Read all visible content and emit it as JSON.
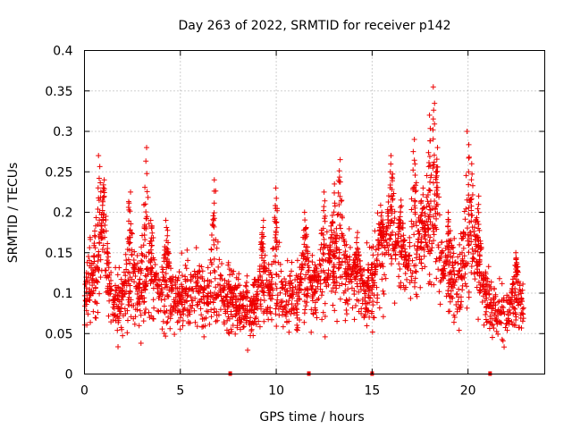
{
  "chart_data": {
    "type": "scatter",
    "title": "Day 263 of 2022, SRMTID for receiver p142",
    "xlabel": "GPS time / hours",
    "ylabel": "SRMTID / TECUs",
    "xlim": [
      0,
      24
    ],
    "ylim": [
      0,
      0.4
    ],
    "x_ticks": [
      "0",
      "5",
      "10",
      "15",
      "20"
    ],
    "y_ticks": [
      "0",
      "0.05",
      "0.1",
      "0.15",
      "0.2",
      "0.25",
      "0.3",
      "0.35",
      "0.4"
    ],
    "grid": true,
    "marker": "+",
    "color": "#ee0000",
    "series": [
      {
        "name": "SRMTID",
        "baseline": [
          [
            0.0,
            0.095
          ],
          [
            0.5,
            0.12
          ],
          [
            1.0,
            0.13
          ],
          [
            1.5,
            0.085
          ],
          [
            2.0,
            0.09
          ],
          [
            2.5,
            0.11
          ],
          [
            3.0,
            0.1
          ],
          [
            3.5,
            0.105
          ],
          [
            4.0,
            0.095
          ],
          [
            4.5,
            0.09
          ],
          [
            5.0,
            0.1
          ],
          [
            5.5,
            0.105
          ],
          [
            6.0,
            0.1
          ],
          [
            6.5,
            0.095
          ],
          [
            7.0,
            0.09
          ],
          [
            7.5,
            0.095
          ],
          [
            8.0,
            0.085
          ],
          [
            8.5,
            0.08
          ],
          [
            9.0,
            0.09
          ],
          [
            9.5,
            0.095
          ],
          [
            10.0,
            0.09
          ],
          [
            10.5,
            0.1
          ],
          [
            11.0,
            0.095
          ],
          [
            11.5,
            0.1
          ],
          [
            12.0,
            0.105
          ],
          [
            12.5,
            0.11
          ],
          [
            13.0,
            0.115
          ],
          [
            13.5,
            0.12
          ],
          [
            14.0,
            0.11
          ],
          [
            14.5,
            0.105
          ],
          [
            15.0,
            0.11
          ],
          [
            15.5,
            0.15
          ],
          [
            16.0,
            0.16
          ],
          [
            16.5,
            0.14
          ],
          [
            17.0,
            0.12
          ],
          [
            17.5,
            0.14
          ],
          [
            18.0,
            0.15
          ],
          [
            18.5,
            0.12
          ],
          [
            19.0,
            0.11
          ],
          [
            19.5,
            0.115
          ],
          [
            20.0,
            0.125
          ],
          [
            20.5,
            0.115
          ],
          [
            21.0,
            0.095
          ],
          [
            21.5,
            0.075
          ],
          [
            22.0,
            0.075
          ],
          [
            22.5,
            0.085
          ],
          [
            22.9,
            0.085
          ]
        ],
        "spikes": [
          [
            0.75,
            0.27
          ],
          [
            1.0,
            0.24
          ],
          [
            2.35,
            0.225
          ],
          [
            3.2,
            0.28
          ],
          [
            3.5,
            0.19
          ],
          [
            4.3,
            0.19
          ],
          [
            6.8,
            0.24
          ],
          [
            9.3,
            0.19
          ],
          [
            10.0,
            0.23
          ],
          [
            11.5,
            0.2
          ],
          [
            12.5,
            0.225
          ],
          [
            13.0,
            0.235
          ],
          [
            13.3,
            0.265
          ],
          [
            14.2,
            0.175
          ],
          [
            15.5,
            0.2
          ],
          [
            16.0,
            0.27
          ],
          [
            16.5,
            0.215
          ],
          [
            17.2,
            0.29
          ],
          [
            17.6,
            0.23
          ],
          [
            18.0,
            0.32
          ],
          [
            18.2,
            0.355
          ],
          [
            18.4,
            0.28
          ],
          [
            19.0,
            0.2
          ],
          [
            20.0,
            0.3
          ],
          [
            20.2,
            0.26
          ],
          [
            20.5,
            0.22
          ],
          [
            22.5,
            0.15
          ]
        ],
        "point_count": 2600,
        "time_span_hours": [
          0.0,
          22.9
        ]
      }
    ],
    "gap_marks_at_zero": [
      7.6,
      11.7,
      15.0,
      21.15
    ]
  }
}
